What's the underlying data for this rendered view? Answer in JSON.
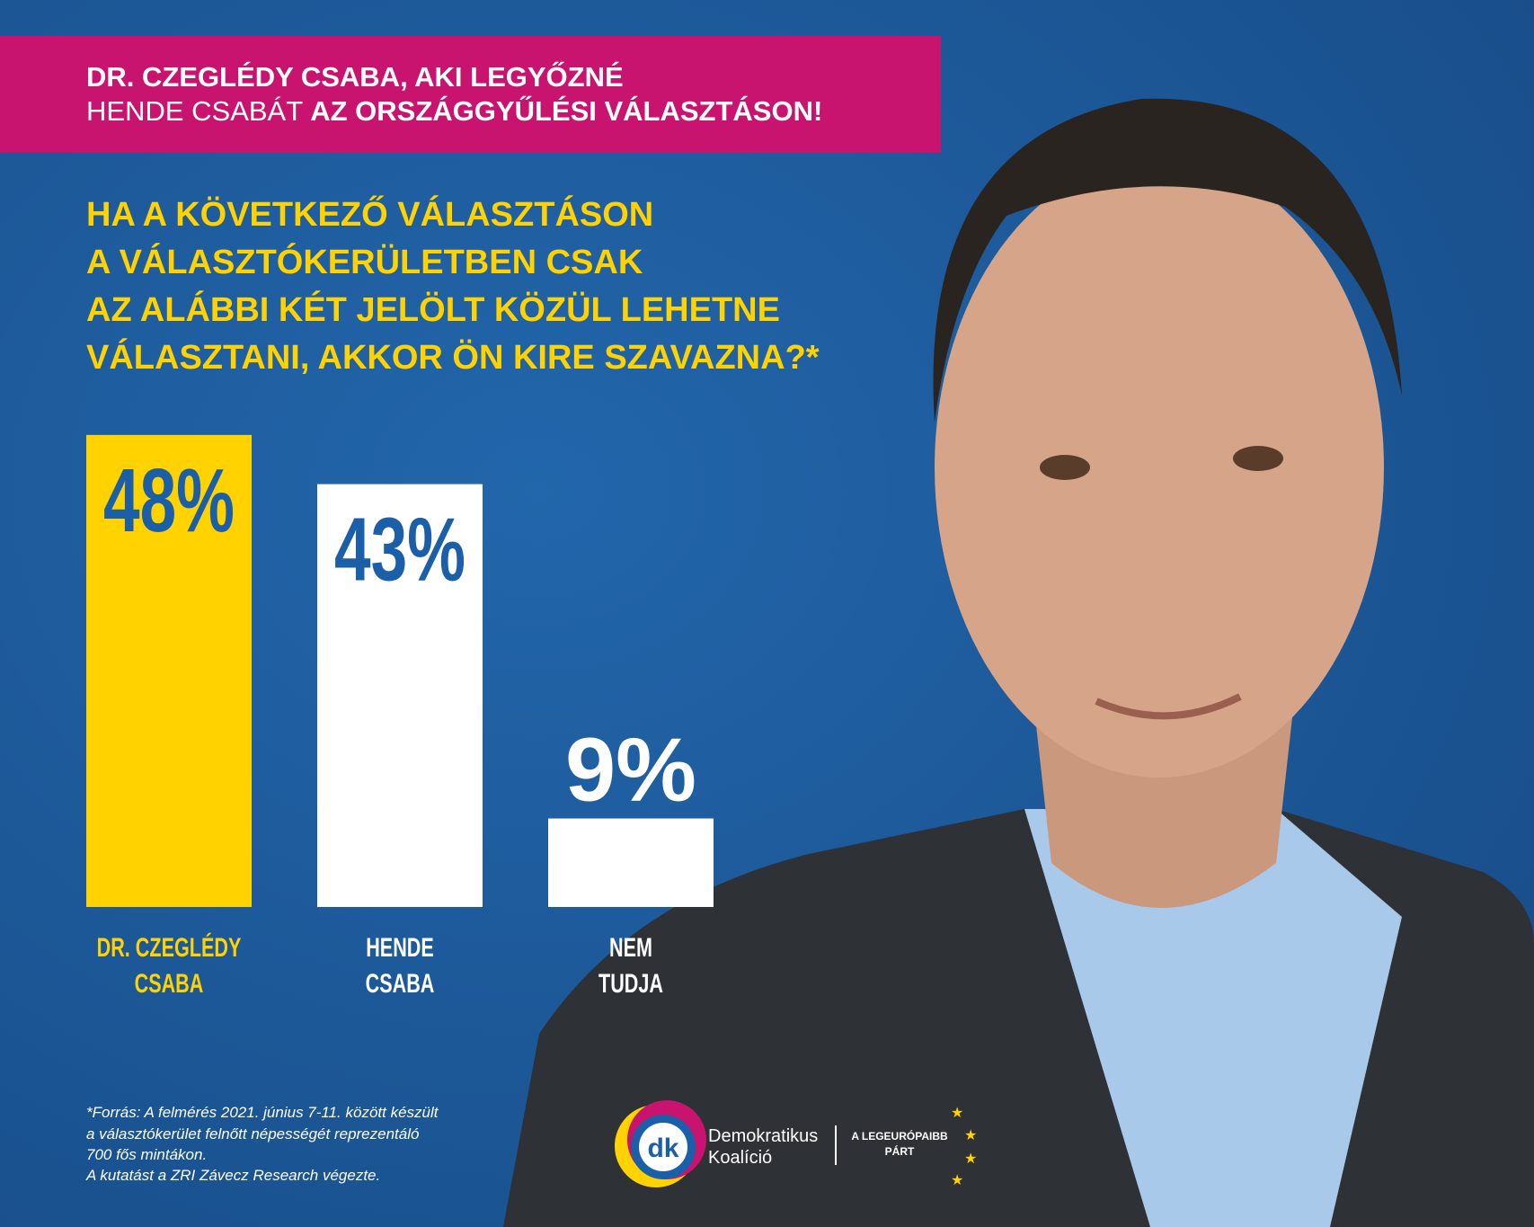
{
  "header": {
    "line1": "DR. CZEGLÉDY CSABA, AKI LEGYŐZNÉ",
    "line2_light": "HENDE CSABÁT",
    "line2_bold": "AZ ORSZÁGGYŰLÉSI VÁLASZTÁSON!"
  },
  "chart_data": {
    "type": "bar",
    "title": [
      "HA A KÖVETKEZŐ VÁLASZTÁSON",
      "A VÁLASZTÓKERÜLETBEN CSAK",
      "AZ ALÁBBI KÉT JELÖLT KÖZÜL LEHETNE",
      "VÁLASZTANI, AKKOR ÖN KIRE SZAVAZNA?*"
    ],
    "categories": [
      [
        "DR. CZEGLÉDY",
        "CSABA"
      ],
      [
        "HENDE",
        "CSABA"
      ],
      [
        "NEM",
        "TUDJA"
      ]
    ],
    "values": [
      48,
      43,
      9
    ],
    "value_labels": [
      "48%",
      "43%",
      "9%"
    ],
    "colors": [
      "#ffd200",
      "#ffffff",
      "#ffffff"
    ],
    "value_label_colors": [
      "#1a5fa8",
      "#1a5fa8",
      "#ffffff"
    ],
    "category_colors": [
      "#ffd200",
      "#ffffff",
      "#ffffff"
    ],
    "ylim": [
      0,
      50
    ]
  },
  "footnote": [
    "*Forrás: A felmérés 2021. június 7-11. között készült",
    "a választókerület felnőtt népességét reprezentáló",
    "700 fős mintákon.",
    "A kutatást a ZRI Závecz Research végezte."
  ],
  "logo": {
    "mark": "dk",
    "name1": "Demokratikus",
    "name2": "Koalíció",
    "slogan1": "A LEGEURÓPAIBB",
    "slogan2": "PÁRT"
  }
}
